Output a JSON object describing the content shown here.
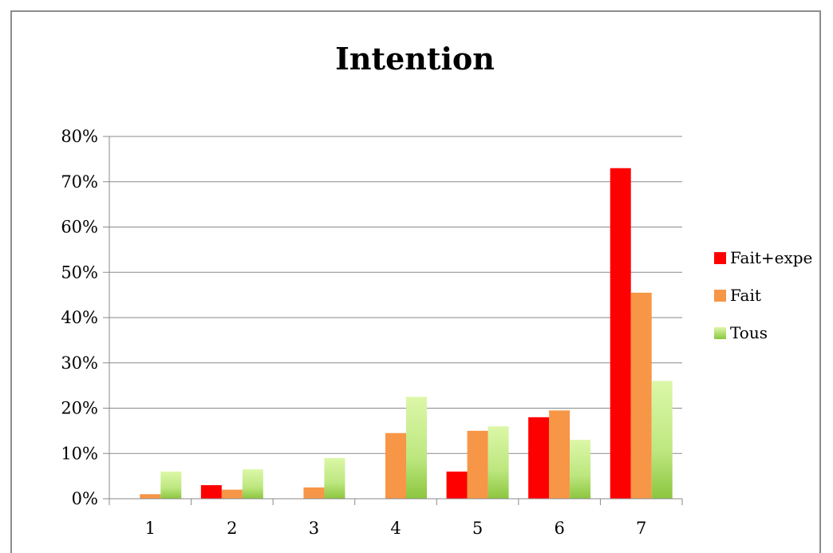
{
  "chart_data": {
    "type": "bar",
    "title": "Intention",
    "categories": [
      "1",
      "2",
      "3",
      "4",
      "5",
      "6",
      "7"
    ],
    "series": [
      {
        "name": "Fait+expe",
        "color": "#ff0000",
        "values": [
          0,
          3,
          0,
          0,
          6,
          18,
          73
        ]
      },
      {
        "name": "Fait",
        "color": "#f79646",
        "values": [
          1,
          2,
          2.5,
          14.5,
          15,
          19.5,
          45.5
        ]
      },
      {
        "name": "Tous",
        "color": "#9bd35a",
        "values": [
          6,
          6.5,
          9,
          22.5,
          16,
          13,
          26
        ]
      }
    ],
    "yticks": [
      "0%",
      "10%",
      "20%",
      "30%",
      "40%",
      "50%",
      "60%",
      "70%",
      "80%"
    ],
    "ylim": [
      0,
      80
    ],
    "grid": true,
    "legend": "right"
  }
}
